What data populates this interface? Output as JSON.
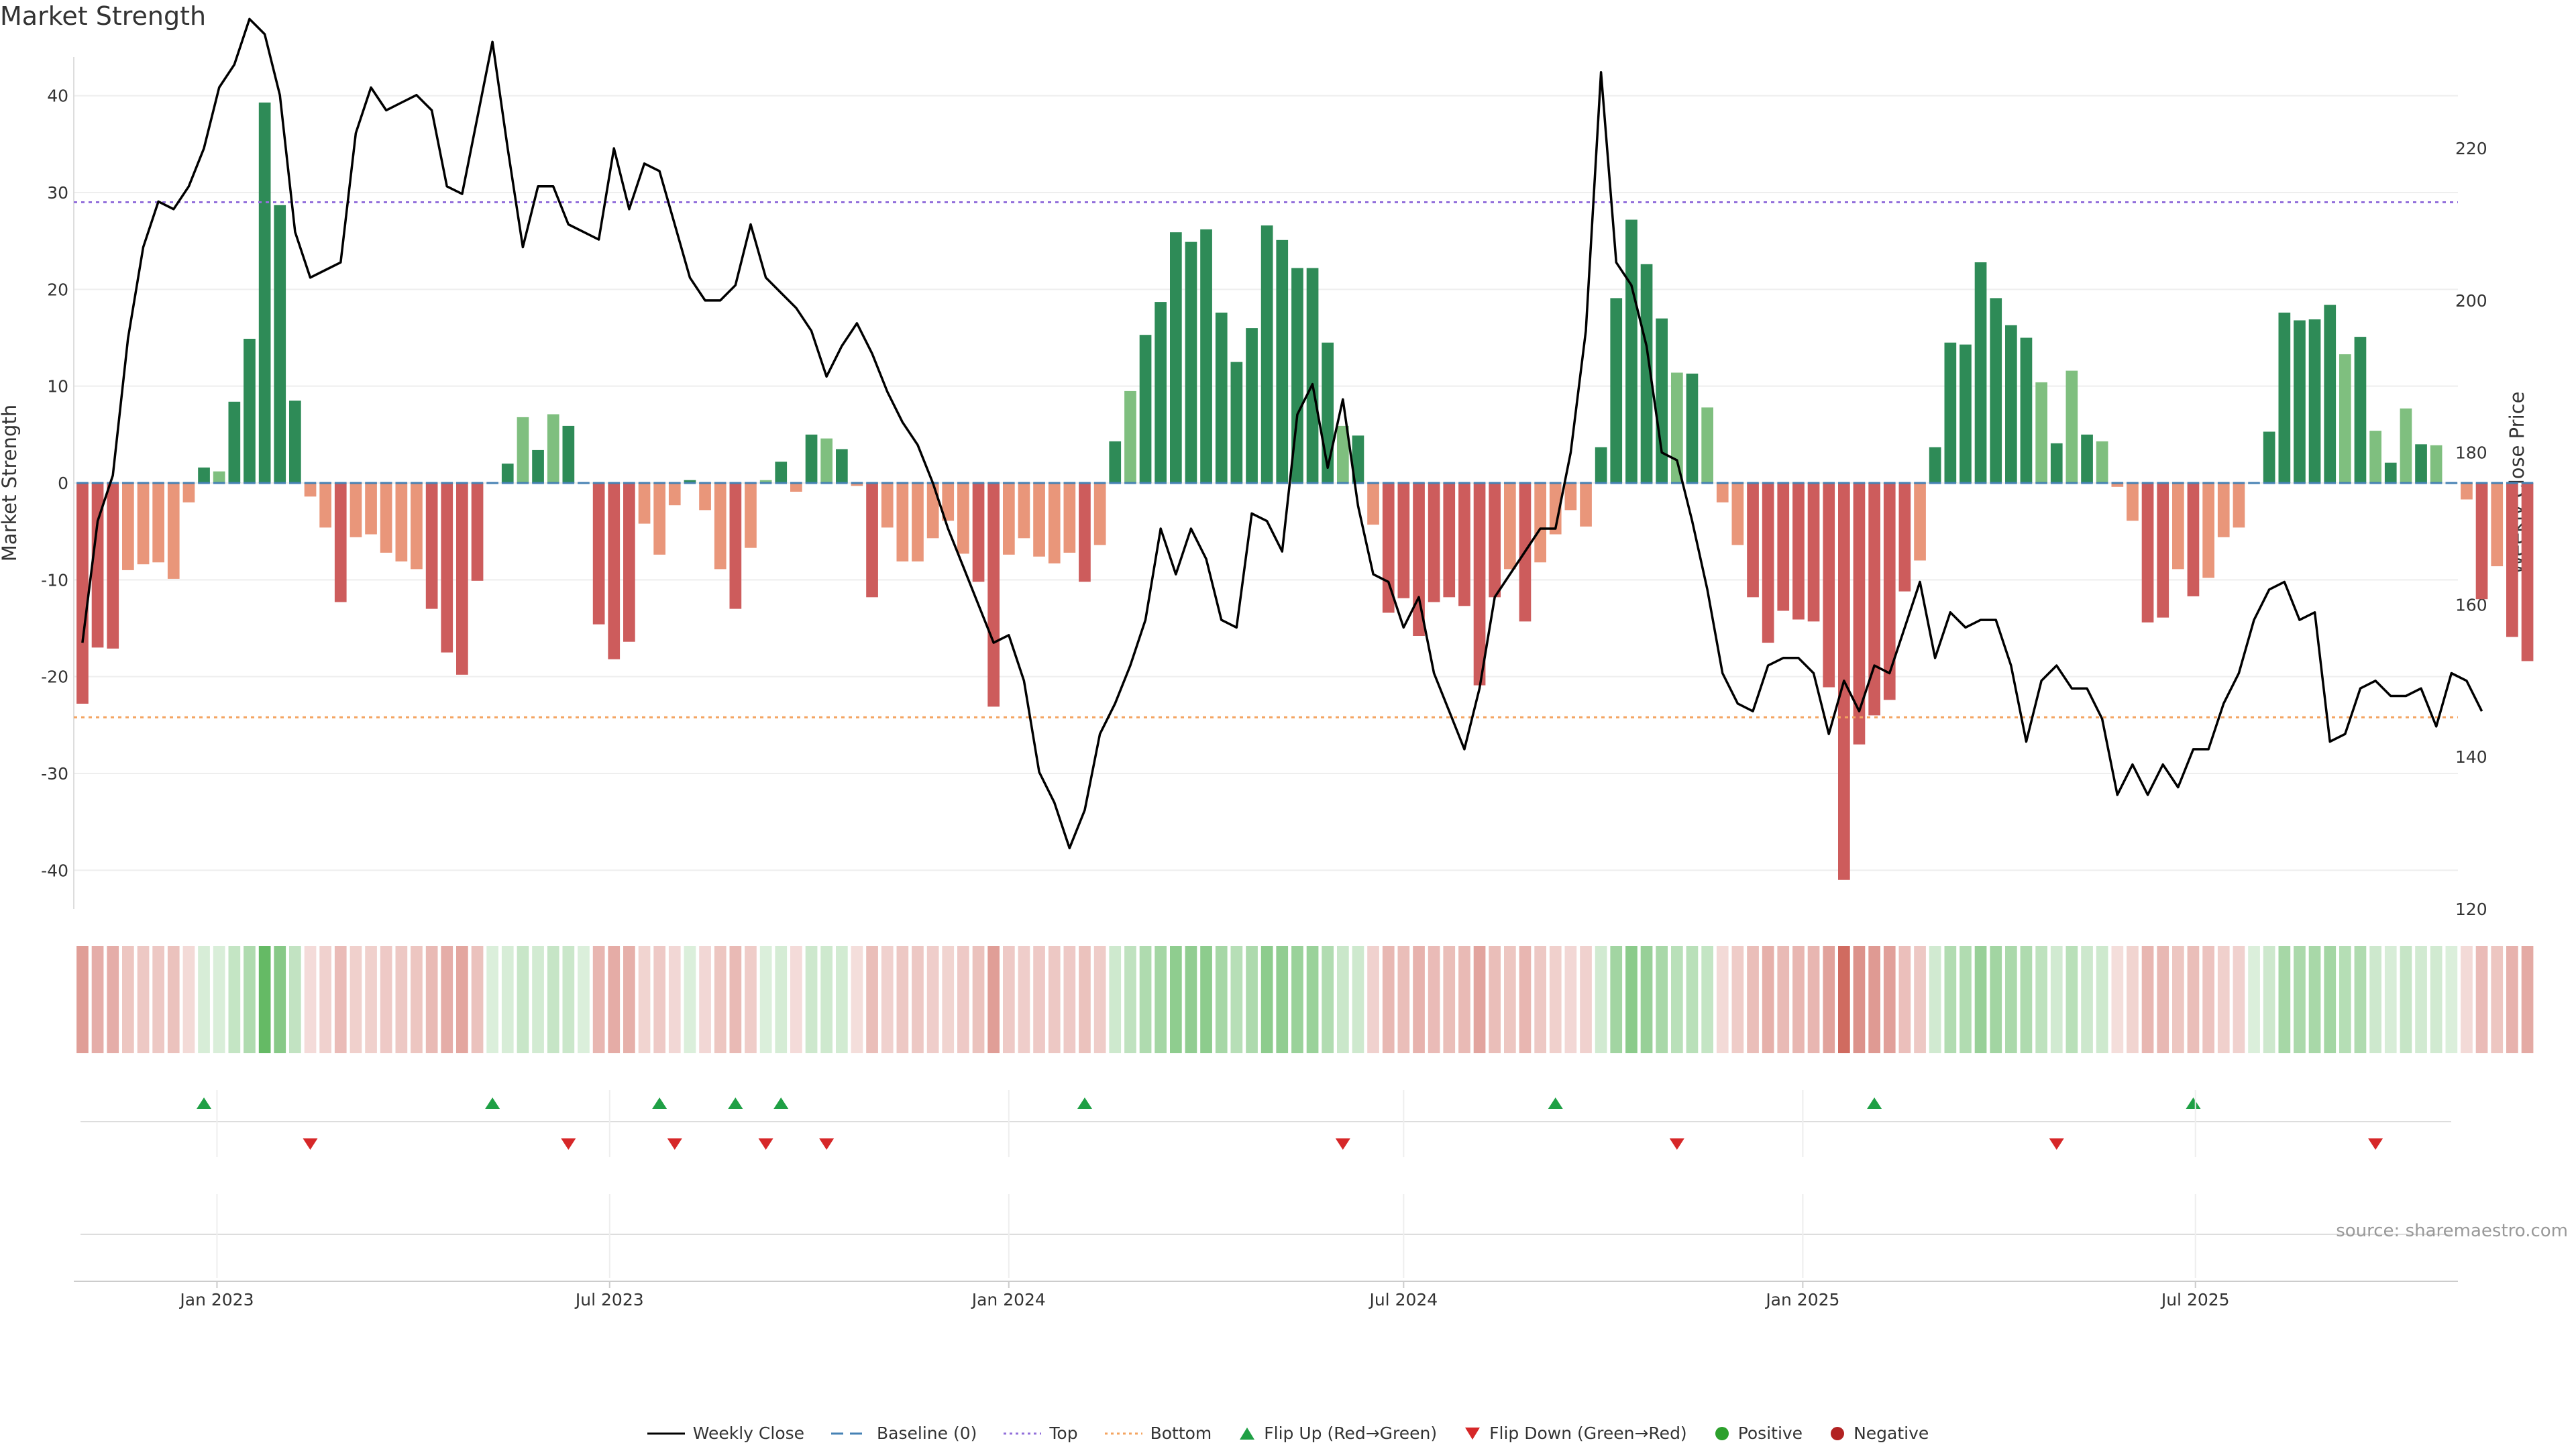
{
  "title": "Market Strength",
  "source": "source: sharemaestro.com",
  "chart_data": {
    "type": "bar",
    "x_start": "2022-10-31",
    "x_step_days": 7,
    "x_ticks": [
      "Jan 2023",
      "Jul 2023",
      "Jan 2024",
      "Jul 2024",
      "Jan 2025",
      "Jul 2025"
    ],
    "x_tick_dates": [
      "2023-01-01",
      "2023-07-01",
      "2024-01-01",
      "2024-07-01",
      "2025-01-01",
      "2025-07-01"
    ],
    "xlim": [
      "2022-10-27",
      "2025-10-30"
    ],
    "left_axis": {
      "label": "Market Strength",
      "ylim": [
        -44,
        44
      ],
      "ticks": [
        -40,
        -30,
        -20,
        -10,
        0,
        10,
        20,
        30,
        40
      ]
    },
    "right_axis": {
      "label": "Weekly Close Price",
      "ylim": [
        120,
        232
      ],
      "ticks": [
        120,
        140,
        160,
        180,
        200,
        220
      ]
    },
    "thresholds": {
      "top": 29,
      "bottom": -24.2,
      "baseline": 0
    },
    "colors": {
      "pos_strong": "#2e8b57",
      "pos_weak": "#7fbf7f",
      "neg_strong": "#cd5c5c",
      "neg_weak": "#e9967a",
      "line": "#000000",
      "top": "#9370db",
      "bottom": "#f4a460",
      "baseline": "#4682b4",
      "flip_up": "#1fa045",
      "flip_down": "#d62728",
      "positive": "#2ca02c",
      "negative": "#b22222"
    },
    "series": [
      {
        "name": "Market Strength",
        "type": "bar",
        "axis": "left",
        "values": [
          -22.8,
          -17,
          -17.1,
          -9,
          -8.4,
          -8.2,
          -9.9,
          -2,
          1.6,
          1.2,
          8.4,
          14.9,
          39.3,
          28.7,
          8.5,
          -1.4,
          -4.6,
          -12.3,
          -5.6,
          -5.3,
          -7.2,
          -8.1,
          -8.9,
          -13,
          -17.5,
          -19.8,
          -10.1,
          0,
          2,
          6.8,
          3.4,
          7.1,
          5.9,
          0,
          -14.6,
          -18.2,
          -16.4,
          -4.2,
          -7.4,
          -2.3,
          0.3,
          -2.8,
          -8.9,
          -13,
          -6.7,
          0.3,
          2.2,
          -0.9,
          5,
          4.6,
          3.5,
          -0.3,
          -11.8,
          -4.6,
          -8.1,
          -8.1,
          -5.7,
          -3.9,
          -7.3,
          -10.2,
          -23.1,
          -7.4,
          -5.7,
          -7.6,
          -8.3,
          -7.2,
          -10.2,
          -6.4,
          4.3,
          9.5,
          15.3,
          18.7,
          25.9,
          24.9,
          26.2,
          17.6,
          12.5,
          16,
          26.6,
          25.1,
          22.2,
          22.2,
          14.5,
          5.9,
          4.9,
          -4.3,
          -13.4,
          -11.9,
          -15.8,
          -12.3,
          -11.8,
          -12.7,
          -20.9,
          -11.8,
          -8.9,
          -14.3,
          -8.2,
          -5.3,
          -2.8,
          -4.5,
          3.7,
          19.1,
          27.2,
          22.6,
          17,
          11.4,
          11.3,
          7.8,
          -2,
          -6.4,
          -11.8,
          -16.5,
          -13.2,
          -14.1,
          -14.3,
          -21.1,
          -41,
          -27,
          -24,
          -22.4,
          -11.2,
          -8,
          3.7,
          14.5,
          14.3,
          22.8,
          19.1,
          16.3,
          15,
          10.4,
          4.1,
          11.6,
          5,
          4.3,
          -0.4,
          -3.9,
          -14.4,
          -13.9,
          -8.9,
          -11.7,
          -9.8,
          -5.6,
          -4.6,
          0,
          5.3,
          17.6,
          16.8,
          16.9,
          18.4,
          13.3,
          15.1,
          5.4,
          2.1,
          7.7,
          4,
          3.9,
          0,
          -1.7,
          -12,
          -8.6,
          -15.9,
          -18.4
        ]
      },
      {
        "name": "Weekly Close",
        "type": "line",
        "axis": "right",
        "values": [
          155,
          171,
          177,
          195,
          207,
          213,
          212,
          215,
          220,
          228,
          231,
          237,
          235,
          227,
          209,
          203,
          204,
          205,
          222,
          228,
          225,
          226,
          227,
          225,
          215,
          214,
          224,
          234,
          220,
          207,
          215,
          215,
          210,
          209,
          208,
          220,
          212,
          218,
          217,
          210,
          203,
          200,
          200,
          202,
          210,
          203,
          201,
          199,
          196,
          190,
          194,
          197,
          193,
          188,
          184,
          181,
          176,
          170,
          165,
          160,
          155,
          156,
          150,
          138,
          134,
          128,
          133,
          143,
          147,
          152,
          158,
          170,
          164,
          170,
          166,
          158,
          157,
          172,
          171,
          167,
          185,
          189,
          178,
          187,
          173,
          164,
          163,
          157,
          161,
          151,
          146,
          141,
          149,
          161,
          164,
          167,
          170,
          170,
          180,
          196,
          230,
          205,
          202,
          194,
          180,
          179,
          171,
          162,
          151,
          147,
          146,
          152,
          153,
          153,
          151,
          143,
          150,
          146,
          152,
          151,
          157,
          163,
          153,
          159,
          157,
          158,
          158,
          152,
          142,
          150,
          152,
          149,
          149,
          145,
          135,
          139,
          135,
          139,
          136,
          141,
          141,
          147,
          151,
          158,
          162,
          163,
          158,
          159,
          142,
          143,
          149,
          150,
          148,
          148,
          149,
          144,
          151,
          150,
          146
        ]
      }
    ],
    "flip_up_weeks": [
      8,
      27,
      38,
      43,
      46,
      66,
      97,
      118,
      139
    ],
    "flip_down_weeks": [
      15,
      32,
      39,
      45,
      49,
      83,
      105,
      130,
      151
    ]
  },
  "legend": [
    {
      "key": "line",
      "label": "Weekly Close"
    },
    {
      "key": "baseline",
      "label": "Baseline (0)"
    },
    {
      "key": "top",
      "label": "Top"
    },
    {
      "key": "bottom",
      "label": "Bottom"
    },
    {
      "key": "flip_up",
      "label": "Flip Up (Red→Green)"
    },
    {
      "key": "flip_down",
      "label": "Flip Down (Green→Red)"
    },
    {
      "key": "positive",
      "label": "Positive"
    },
    {
      "key": "negative",
      "label": "Negative"
    }
  ]
}
